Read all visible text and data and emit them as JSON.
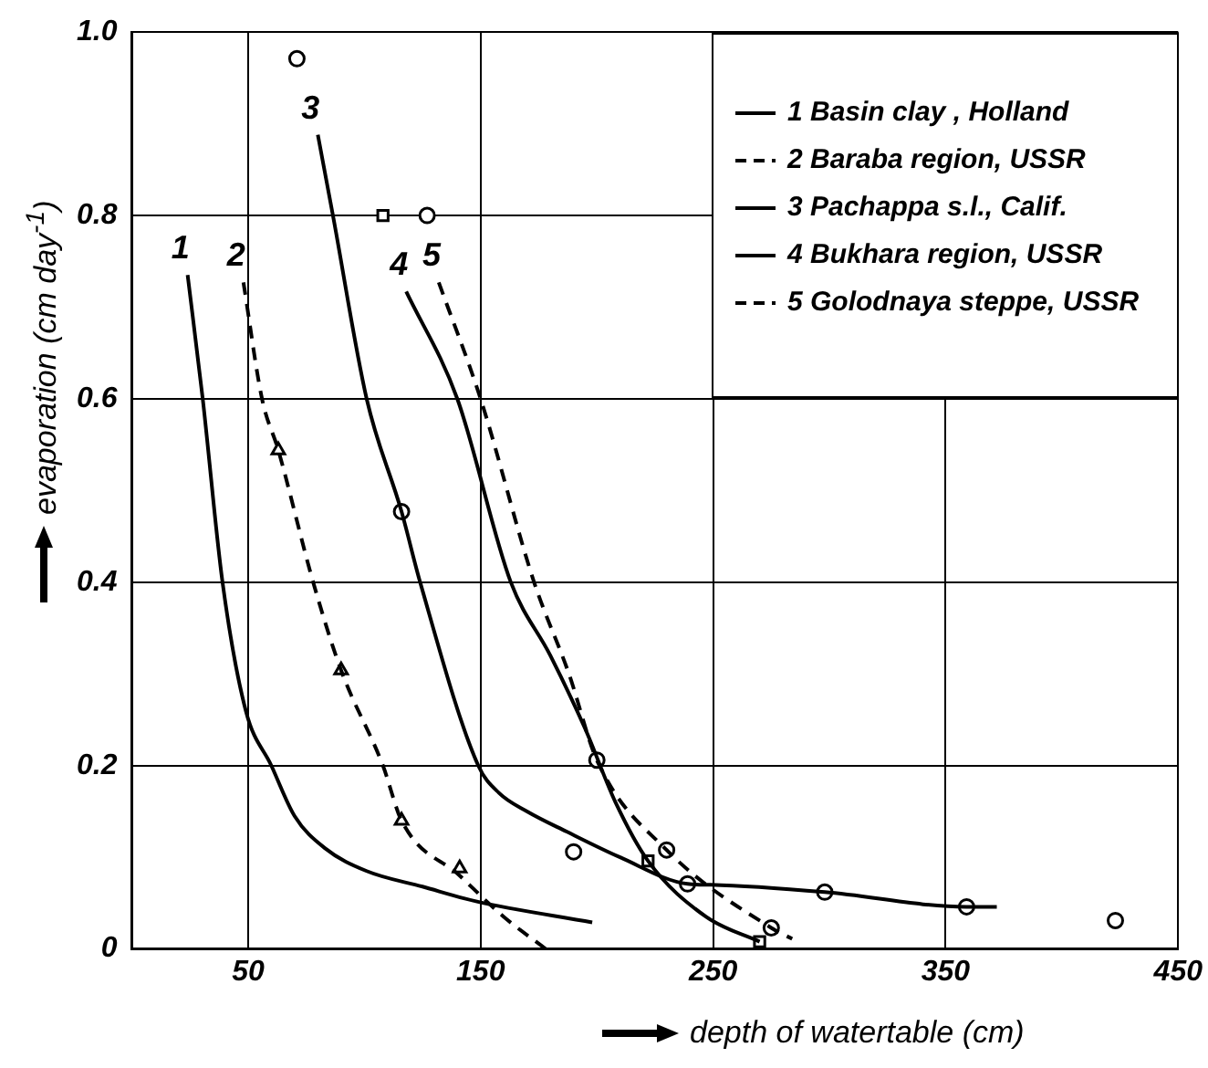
{
  "chart_data": {
    "type": "line",
    "xlabel": "depth of watertable (cm)",
    "ylabel": "evaporation (cm day$^{-1}$)",
    "xlim": [
      0,
      450
    ],
    "xticks": [
      50,
      150,
      250,
      350,
      450
    ],
    "ylim": [
      0,
      1
    ],
    "yticks": [
      0,
      0.2,
      0.4,
      0.6,
      0.8,
      {
        "value": 1,
        "label": "1.0"
      }
    ],
    "grid": true,
    "legend": "top right",
    "series": [
      {
        "name": "1 Basin clay , Holland",
        "color": "#000000",
        "line_style": "solid",
        "x": [
          24,
          30.5,
          39,
          49,
          60,
          70,
          83,
          101,
          125,
          148,
          198
        ],
        "values": [
          0.735,
          0.6,
          0.4,
          0.26,
          0.2,
          0.145,
          0.11,
          0.085,
          0.068,
          0.052,
          0.029
        ]
      },
      {
        "name": "2 Baraba region, USSR",
        "color": "#000000",
        "line_style": "dashed",
        "x": [
          48,
          56,
          63,
          78,
          90,
          108,
          116,
          141,
          160,
          178
        ],
        "values": [
          0.727,
          0.6,
          0.544,
          0.4,
          0.304,
          0.2,
          0.14,
          0.08,
          0.035,
          0
        ]
      },
      {
        "name": "3 Pachappa s.l., Calif.",
        "color": "#000000",
        "line_style": "solid",
        "x": [
          80,
          86.5,
          101,
          116,
          124,
          149,
          158,
          170,
          187,
          210,
          239,
          249,
          298,
          359,
          372
        ],
        "values": [
          0.888,
          0.8,
          0.6,
          0.477,
          0.4,
          0.2,
          0.17,
          0.15,
          0.128,
          0.1,
          0.071,
          0.07,
          0.062,
          0.046,
          0.046
        ]
      },
      {
        "name": "4 Bukhara region, USSR",
        "color": "#000000",
        "line_style": "solid",
        "x": [
          118,
          140,
          163,
          180,
          195,
          208,
          222,
          247,
          270
        ],
        "values": [
          0.717,
          0.6,
          0.4,
          0.32,
          0.24,
          0.16,
          0.096,
          0.035,
          0.008
        ]
      },
      {
        "name": "5 Golodnaya steppe, USSR",
        "color": "#000000",
        "line_style": "dashed",
        "x": [
          132,
          150,
          173,
          188,
          200,
          230,
          275,
          284
        ],
        "values": [
          0.727,
          0.6,
          0.4,
          0.3,
          0.206,
          0.108,
          0.023,
          0.011
        ]
      },
      {
        "type": "scatter",
        "marker": "triangle",
        "color": "#000000",
        "x": [
          63,
          90,
          116,
          141
        ],
        "values": [
          0.544,
          0.304,
          0.14,
          0.088
        ]
      },
      {
        "type": "scatter",
        "marker": "circle",
        "color": "#000000",
        "x": [
          71,
          116,
          190,
          239,
          298,
          359,
          423
        ],
        "values": [
          0.971,
          0.477,
          0.106,
          0.071,
          0.062,
          0.046,
          0.031
        ]
      },
      {
        "type": "scatter",
        "marker": "square",
        "color": "#000000",
        "x": [
          108,
          222,
          270
        ],
        "values": [
          0.8,
          0.096,
          0.008
        ]
      },
      {
        "type": "scatter",
        "marker": "circle",
        "color": "#000000",
        "x": [
          127,
          200,
          230,
          275
        ],
        "values": [
          0.8,
          0.206,
          0.108,
          0.023
        ]
      }
    ],
    "annotations": [
      {
        "text": "1",
        "x": 24,
        "y": 0.735
      },
      {
        "text": "2",
        "x": 48,
        "y": 0.727
      },
      {
        "text": "3",
        "x": 80,
        "y": 0.888
      },
      {
        "text": "4",
        "x": 118,
        "y": 0.717
      },
      {
        "text": "5",
        "x": 132,
        "y": 0.727
      }
    ]
  }
}
